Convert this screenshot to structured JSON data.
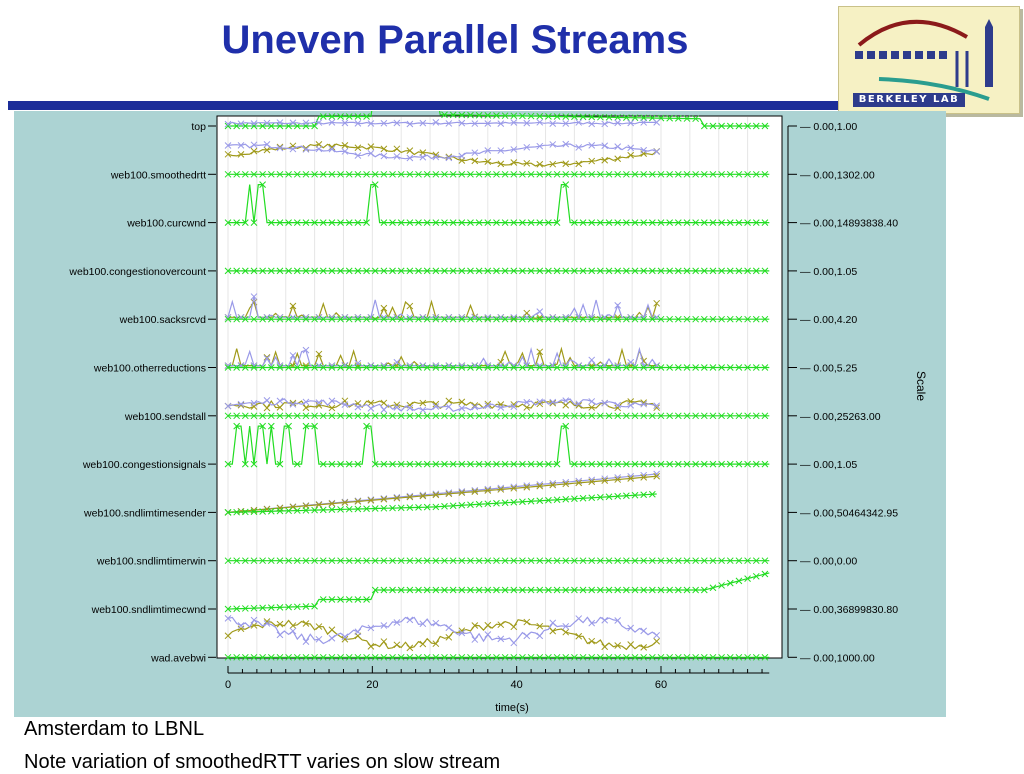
{
  "slide": {
    "title": "Uneven Parallel Streams",
    "captions": [
      "Amsterdam to LBNL",
      "Note variation of smoothedRTT varies on slow stream"
    ]
  },
  "logo": {
    "wordmark": "BERKELEY LAB"
  },
  "colors": {
    "title": "#1f2faa",
    "rule": "#1c2d99",
    "panel": "#acd3d3",
    "stream_green": "#22dd22",
    "stream_olive": "#a09a1a",
    "stream_blue": "#9a9ae8"
  },
  "chart_data": {
    "type": "line",
    "xlabel": "time(s)",
    "right_axis_label": "Scale",
    "x_ticks": [
      0,
      20,
      40,
      60
    ],
    "xlim": [
      0,
      75
    ],
    "rows": [
      {
        "name": "top",
        "scale": "0.00,1.00"
      },
      {
        "name": "web100.smoothedrtt",
        "scale": "0.00,1302.00"
      },
      {
        "name": "web100.curcwnd",
        "scale": "0.00,14893838.40"
      },
      {
        "name": "web100.congestionovercount",
        "scale": "0.00,1.05"
      },
      {
        "name": "web100.sacksrcvd",
        "scale": "0.00,4.20"
      },
      {
        "name": "web100.otherreductions",
        "scale": "0.00,5.25"
      },
      {
        "name": "web100.sendstall",
        "scale": "0.00,25263.00"
      },
      {
        "name": "web100.congestionsignals",
        "scale": "0.00,1.05"
      },
      {
        "name": "web100.sndlimtimesender",
        "scale": "0.00,50464342.95"
      },
      {
        "name": "web100.sndlimtimerwin",
        "scale": "0.00,0.00"
      },
      {
        "name": "web100.sndlimtimecwnd",
        "scale": "0.00,36899830.80"
      },
      {
        "name": "wad.avebwi",
        "scale": "0.00,1000.00"
      }
    ]
  }
}
